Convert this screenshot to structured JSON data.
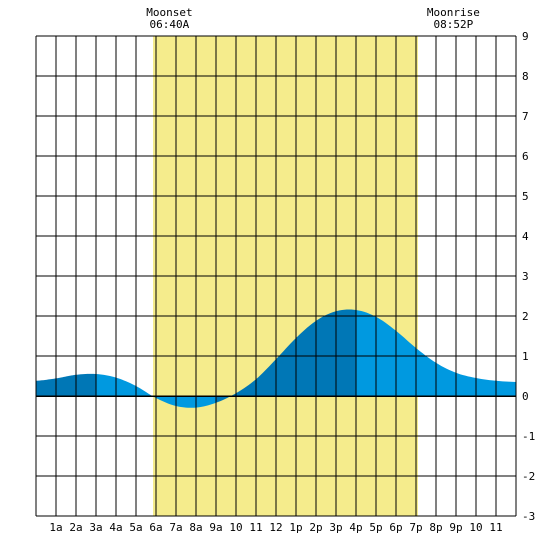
{
  "chart_data": {
    "type": "area",
    "title": "",
    "xlabel": "",
    "ylabel": "",
    "x_tick_labels": [
      "1a",
      "2a",
      "3a",
      "4a",
      "5a",
      "6a",
      "7a",
      "8a",
      "9a",
      "10",
      "11",
      "12",
      "1p",
      "2p",
      "3p",
      "4p",
      "5p",
      "6p",
      "7p",
      "8p",
      "9p",
      "10",
      "11"
    ],
    "y_tick_labels": [
      "9",
      "8",
      "7",
      "6",
      "5",
      "4",
      "3",
      "2",
      "1",
      "0",
      "-1",
      "-2",
      "-3"
    ],
    "xlim": [
      0,
      24
    ],
    "ylim": [
      -3,
      9
    ],
    "grid": true,
    "daylight": {
      "start_hour": 5.85,
      "end_hour": 19.1,
      "color": "#f5ec8c"
    },
    "annotations": [
      {
        "label": "Moonset",
        "time": "06:40A",
        "hour": 6.67
      },
      {
        "label": "Moonrise",
        "time": "08:52P",
        "hour": 20.87
      }
    ],
    "series": [
      {
        "x": [
          0,
          1,
          2,
          3,
          4,
          5,
          6,
          7,
          8,
          9,
          10,
          11,
          12,
          13,
          14,
          15,
          16,
          17,
          18,
          19,
          20,
          21,
          22,
          23,
          24
        ],
        "values": [
          0.38,
          0.44,
          0.53,
          0.55,
          0.46,
          0.25,
          -0.05,
          -0.25,
          -0.29,
          -0.17,
          0.07,
          0.42,
          0.92,
          1.45,
          1.88,
          2.12,
          2.15,
          1.98,
          1.63,
          1.2,
          0.83,
          0.58,
          0.45,
          0.38,
          0.35
        ]
      }
    ],
    "colors": {
      "tide_light": "#0099e0",
      "tide_dark": "#0077b6",
      "grid": "#000000",
      "zero_line": "#000000"
    }
  }
}
